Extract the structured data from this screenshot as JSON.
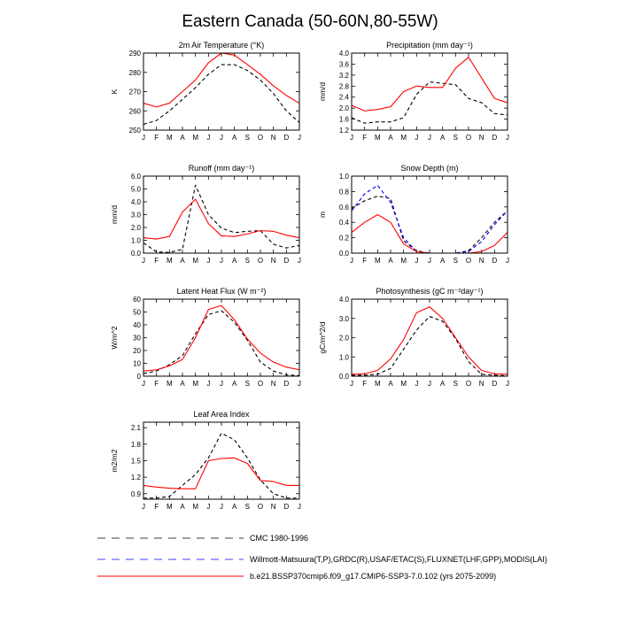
{
  "figure": {
    "title": "Eastern Canada (50-60N,80-55W)"
  },
  "legend": {
    "items": [
      {
        "label": "CMC 1980-1996",
        "color": "#000000",
        "dash": true
      },
      {
        "label": "Willmott-Matsuura(T,P),GRDC(R),USAF/ETAC(S),FLUXNET(LHF,GPP),MODIS(LAI)",
        "color": "#0000ff",
        "dash": true
      },
      {
        "label": "b.e21.BSSP370cmip6.f09_g17.CMIP6-SSP3-7.0.102 (yrs 2075-2099)",
        "color": "#ff0000",
        "dash": false
      }
    ]
  },
  "chart_data": [
    {
      "type": "line",
      "title": "2m Air Temperature (°K)",
      "ylabel": "K",
      "categories": [
        "J",
        "F",
        "M",
        "A",
        "M",
        "J",
        "J",
        "A",
        "S",
        "O",
        "N",
        "D",
        "J"
      ],
      "ylim": [
        250,
        290
      ],
      "yticks": [
        "250",
        "260",
        "270",
        "280",
        "290"
      ],
      "series": [
        {
          "color": "#ff0000",
          "dash": false,
          "values": [
            264,
            262,
            264,
            270,
            276,
            285,
            290,
            289,
            284,
            279,
            273,
            268,
            264
          ]
        },
        {
          "color": "#000000",
          "dash": true,
          "values": [
            253,
            255,
            260,
            266,
            272,
            279,
            284,
            284,
            281,
            276,
            269,
            260,
            254
          ]
        }
      ]
    },
    {
      "type": "line",
      "title": "Precipitation (mm day⁻¹)",
      "ylabel": "mm/d",
      "categories": [
        "J",
        "F",
        "M",
        "A",
        "M",
        "J",
        "J",
        "A",
        "S",
        "O",
        "N",
        "D",
        "J"
      ],
      "ylim": [
        1.2,
        4.0
      ],
      "yticks": [
        "1.2",
        "1.6",
        "2.0",
        "2.4",
        "2.8",
        "3.2",
        "3.6",
        "4.0"
      ],
      "series": [
        {
          "color": "#ff0000",
          "dash": false,
          "values": [
            2.1,
            1.9,
            1.95,
            2.05,
            2.6,
            2.8,
            2.75,
            2.75,
            3.45,
            3.85,
            3.1,
            2.35,
            2.2
          ]
        },
        {
          "color": "#000000",
          "dash": true,
          "values": [
            1.65,
            1.45,
            1.5,
            1.5,
            1.65,
            2.5,
            2.95,
            2.9,
            2.85,
            2.35,
            2.2,
            1.8,
            1.75
          ]
        }
      ]
    },
    {
      "type": "line",
      "title": "Runoff (mm day⁻¹)",
      "ylabel": "mm/d",
      "categories": [
        "J",
        "F",
        "M",
        "A",
        "M",
        "J",
        "J",
        "A",
        "S",
        "O",
        "N",
        "D",
        "J"
      ],
      "ylim": [
        0,
        6
      ],
      "yticks": [
        "0.0",
        "1.0",
        "2.0",
        "3.0",
        "4.0",
        "5.0",
        "6.0"
      ],
      "series": [
        {
          "color": "#ff0000",
          "dash": false,
          "values": [
            1.2,
            1.1,
            1.3,
            3.2,
            4.2,
            2.3,
            1.35,
            1.3,
            1.5,
            1.75,
            1.7,
            1.4,
            1.2
          ]
        },
        {
          "color": "#000000",
          "dash": true,
          "values": [
            0.8,
            0.1,
            0.05,
            0.3,
            5.3,
            3.0,
            1.95,
            1.6,
            1.7,
            1.75,
            0.7,
            0.4,
            0.6
          ]
        }
      ]
    },
    {
      "type": "line",
      "title": "Snow Depth (m)",
      "ylabel": "m",
      "categories": [
        "J",
        "F",
        "M",
        "A",
        "M",
        "J",
        "J",
        "A",
        "S",
        "O",
        "N",
        "D",
        "J"
      ],
      "ylim": [
        0,
        1
      ],
      "yticks": [
        "0.0",
        "0.2",
        "0.4",
        "0.6",
        "0.8",
        "1.0"
      ],
      "series": [
        {
          "color": "#ff0000",
          "dash": false,
          "values": [
            0.27,
            0.4,
            0.5,
            0.4,
            0.12,
            0.02,
            0,
            0,
            0,
            0,
            0.02,
            0.1,
            0.27
          ]
        },
        {
          "color": "#0000ff",
          "dash": true,
          "values": [
            0.55,
            0.77,
            0.88,
            0.66,
            0.2,
            0.02,
            0,
            0,
            0,
            0.02,
            0.15,
            0.37,
            0.55
          ]
        },
        {
          "color": "#000000",
          "dash": true,
          "values": [
            0.58,
            0.68,
            0.74,
            0.71,
            0.16,
            0.03,
            0,
            0,
            0,
            0.03,
            0.2,
            0.4,
            0.55
          ]
        }
      ]
    },
    {
      "type": "line",
      "title": "Latent Heat Flux (W m⁻²)",
      "ylabel": "W/m^2",
      "categories": [
        "J",
        "F",
        "M",
        "A",
        "M",
        "J",
        "J",
        "A",
        "S",
        "O",
        "N",
        "D",
        "J"
      ],
      "ylim": [
        0,
        60
      ],
      "yticks": [
        "0",
        "10",
        "20",
        "30",
        "40",
        "50",
        "60"
      ],
      "series": [
        {
          "color": "#ff0000",
          "dash": false,
          "values": [
            4,
            5,
            8,
            13,
            30,
            52,
            55,
            44,
            29,
            18,
            11,
            7,
            5
          ]
        },
        {
          "color": "#000000",
          "dash": true,
          "values": [
            2,
            4,
            9,
            16,
            33,
            48,
            51,
            42,
            28,
            11,
            4,
            1,
            0.5
          ]
        }
      ]
    },
    {
      "type": "line",
      "title": "Photosynthesis (gC m⁻²day⁻¹)",
      "ylabel": "gC/m^2/d",
      "categories": [
        "J",
        "F",
        "M",
        "A",
        "M",
        "J",
        "J",
        "A",
        "S",
        "O",
        "N",
        "D",
        "J"
      ],
      "ylim": [
        0,
        4
      ],
      "yticks": [
        "0.0",
        "1.0",
        "2.0",
        "3.0",
        "4.0"
      ],
      "series": [
        {
          "color": "#ff0000",
          "dash": false,
          "values": [
            0.1,
            0.12,
            0.3,
            0.9,
            1.9,
            3.3,
            3.6,
            3.0,
            2.0,
            1.0,
            0.3,
            0.12,
            0.1
          ]
        },
        {
          "color": "#000000",
          "dash": true,
          "values": [
            0.05,
            0.05,
            0.1,
            0.4,
            1.4,
            2.4,
            3.1,
            2.85,
            1.95,
            0.75,
            0.1,
            0.05,
            0.02
          ]
        }
      ]
    },
    {
      "type": "line",
      "title": "Leaf Area Index",
      "ylabel": "m2/m2",
      "categories": [
        "J",
        "F",
        "M",
        "A",
        "M",
        "J",
        "J",
        "A",
        "S",
        "O",
        "N",
        "D",
        "J"
      ],
      "ylim": [
        0.8,
        2.2
      ],
      "yticks": [
        "0.9",
        "1.2",
        "1.5",
        "1.8",
        "2.1"
      ],
      "series": [
        {
          "color": "#ff0000",
          "dash": false,
          "values": [
            1.05,
            1.02,
            1.0,
            0.99,
            0.99,
            1.5,
            1.54,
            1.55,
            1.45,
            1.14,
            1.12,
            1.05,
            1.05
          ]
        },
        {
          "color": "#000000",
          "dash": true,
          "values": [
            0.82,
            0.82,
            0.85,
            1.05,
            1.25,
            1.55,
            2.0,
            1.88,
            1.55,
            1.15,
            0.9,
            0.82,
            0.82
          ]
        }
      ]
    }
  ]
}
